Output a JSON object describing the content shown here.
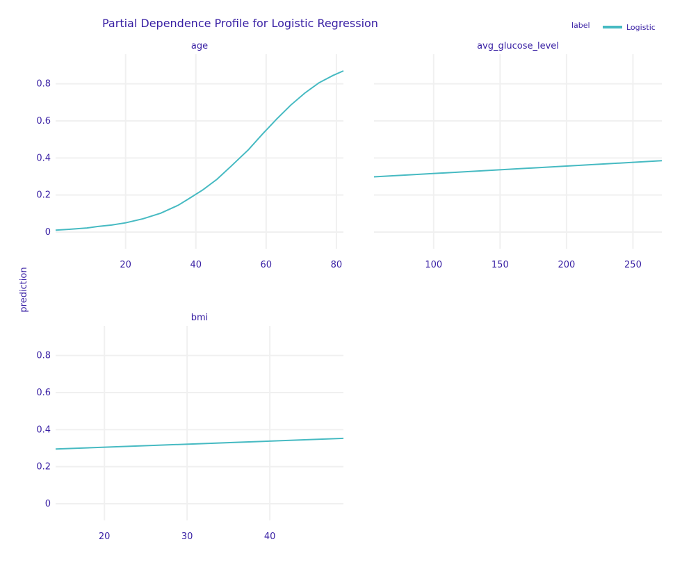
{
  "title": "Partial Dependence Profile for Logistic Regression",
  "ylabel": "prediction",
  "legend": {
    "title": "label",
    "entries": [
      {
        "name": "Logistic",
        "color": "#46bac2"
      }
    ]
  },
  "colors": {
    "text": "#371ea3",
    "grid": "#f0f0f0",
    "line": "#46bac2"
  },
  "chart_data": [
    {
      "type": "line",
      "subtitle": "age",
      "series": [
        {
          "name": "Logistic",
          "x": [
            0.08,
            4,
            9,
            12,
            16,
            20,
            25,
            30,
            35,
            38,
            42,
            46,
            50,
            55,
            59,
            63,
            67,
            71,
            75,
            79,
            82
          ],
          "y": [
            0.01,
            0.015,
            0.022,
            0.03,
            0.038,
            0.05,
            0.072,
            0.102,
            0.145,
            0.18,
            0.228,
            0.285,
            0.355,
            0.445,
            0.53,
            0.61,
            0.685,
            0.75,
            0.805,
            0.845,
            0.87
          ]
        }
      ],
      "xlim": [
        0.08,
        82
      ],
      "ylim": [
        -0.09,
        0.96
      ],
      "xticks": [
        20,
        40,
        60,
        80
      ],
      "yticks": [
        0,
        0.2,
        0.4,
        0.6,
        0.8
      ],
      "ytick_labels": [
        "0",
        "0.2",
        "0.4",
        "0.6",
        "0.8"
      ],
      "grid": true
    },
    {
      "type": "line",
      "subtitle": "avg_glucose_level",
      "series": [
        {
          "name": "Logistic",
          "x": [
            55.12,
            271.74
          ],
          "y": [
            0.298,
            0.385
          ]
        }
      ],
      "xlim": [
        55.12,
        271.74
      ],
      "ylim": [
        -0.09,
        0.96
      ],
      "xticks": [
        100,
        150,
        200,
        250
      ],
      "yticks": [
        0,
        0.2,
        0.4,
        0.6,
        0.8
      ],
      "grid": true
    },
    {
      "type": "line",
      "subtitle": "bmi",
      "series": [
        {
          "name": "Logistic",
          "x": [
            14.1,
            48.9
          ],
          "y": [
            0.295,
            0.353
          ]
        }
      ],
      "xlim": [
        14.1,
        48.9
      ],
      "ylim": [
        -0.09,
        0.96
      ],
      "xticks": [
        20,
        30,
        40
      ],
      "yticks": [
        0,
        0.2,
        0.4,
        0.6,
        0.8
      ],
      "ytick_labels": [
        "0",
        "0.2",
        "0.4",
        "0.6",
        "0.8"
      ],
      "grid": true
    }
  ]
}
